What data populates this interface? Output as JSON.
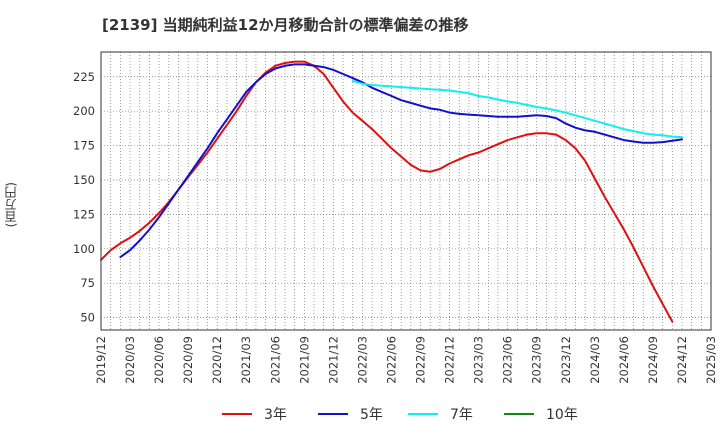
{
  "chart_data": {
    "type": "line",
    "title": "[2139]  当期純利益12か月移動合計の標準偏差の推移",
    "ylabel": "(百万円)",
    "xlabel": "",
    "x_ticks": [
      "2019/12",
      "2020/03",
      "2020/06",
      "2020/09",
      "2020/12",
      "2021/03",
      "2021/06",
      "2021/09",
      "2021/12",
      "2022/03",
      "2022/06",
      "2022/09",
      "2022/12",
      "2023/03",
      "2023/06",
      "2023/09",
      "2023/12",
      "2024/03",
      "2024/06",
      "2024/09",
      "2024/12",
      "2025/03"
    ],
    "y_ticks": [
      50,
      75,
      100,
      125,
      150,
      175,
      200,
      225
    ],
    "ylim": [
      41,
      243
    ],
    "xlim": [
      "2019/12",
      "2025/03"
    ],
    "grid": true,
    "legend_position": "bottom",
    "series": [
      {
        "name": "3年",
        "color": "#dd1111",
        "points": [
          [
            "2019/12",
            92
          ],
          [
            "2020/01",
            99
          ],
          [
            "2020/02",
            104
          ],
          [
            "2020/03",
            108
          ],
          [
            "2020/04",
            113
          ],
          [
            "2020/05",
            119
          ],
          [
            "2020/06",
            126
          ],
          [
            "2020/07",
            134
          ],
          [
            "2020/08",
            143
          ],
          [
            "2020/09",
            152
          ],
          [
            "2020/10",
            161
          ],
          [
            "2020/11",
            170
          ],
          [
            "2020/12",
            180
          ],
          [
            "2021/01",
            190
          ],
          [
            "2021/02",
            200
          ],
          [
            "2021/03",
            211
          ],
          [
            "2021/04",
            221
          ],
          [
            "2021/05",
            228
          ],
          [
            "2021/06",
            233
          ],
          [
            "2021/07",
            235
          ],
          [
            "2021/08",
            236
          ],
          [
            "2021/09",
            236
          ],
          [
            "2021/10",
            233
          ],
          [
            "2021/11",
            227
          ],
          [
            "2021/12",
            217
          ],
          [
            "2022/01",
            207
          ],
          [
            "2022/02",
            199
          ],
          [
            "2022/03",
            193
          ],
          [
            "2022/04",
            187
          ],
          [
            "2022/05",
            180
          ],
          [
            "2022/06",
            173
          ],
          [
            "2022/07",
            167
          ],
          [
            "2022/08",
            161
          ],
          [
            "2022/09",
            157
          ],
          [
            "2022/10",
            156
          ],
          [
            "2022/11",
            158
          ],
          [
            "2022/12",
            162
          ],
          [
            "2023/01",
            165
          ],
          [
            "2023/02",
            168
          ],
          [
            "2023/03",
            170
          ],
          [
            "2023/04",
            173
          ],
          [
            "2023/05",
            176
          ],
          [
            "2023/06",
            179
          ],
          [
            "2023/07",
            181
          ],
          [
            "2023/08",
            183
          ],
          [
            "2023/09",
            184
          ],
          [
            "2023/10",
            184
          ],
          [
            "2023/11",
            183
          ],
          [
            "2023/12",
            179
          ],
          [
            "2024/01",
            173
          ],
          [
            "2024/02",
            164
          ],
          [
            "2024/03",
            151
          ],
          [
            "2024/04",
            138
          ],
          [
            "2024/05",
            126
          ],
          [
            "2024/06",
            114
          ],
          [
            "2024/07",
            101
          ],
          [
            "2024/08",
            87
          ],
          [
            "2024/09",
            73
          ],
          [
            "2024/10",
            60
          ],
          [
            "2024/11",
            47
          ]
        ]
      },
      {
        "name": "5年",
        "color": "#1111cc",
        "points": [
          [
            "2020/02",
            94
          ],
          [
            "2020/03",
            99
          ],
          [
            "2020/04",
            106
          ],
          [
            "2020/05",
            114
          ],
          [
            "2020/06",
            123
          ],
          [
            "2020/07",
            133
          ],
          [
            "2020/08",
            143
          ],
          [
            "2020/09",
            153
          ],
          [
            "2020/10",
            163
          ],
          [
            "2020/11",
            173
          ],
          [
            "2020/12",
            184
          ],
          [
            "2021/01",
            194
          ],
          [
            "2021/02",
            204
          ],
          [
            "2021/03",
            214
          ],
          [
            "2021/04",
            221
          ],
          [
            "2021/05",
            227
          ],
          [
            "2021/06",
            231
          ],
          [
            "2021/07",
            233
          ],
          [
            "2021/08",
            234
          ],
          [
            "2021/09",
            234
          ],
          [
            "2021/10",
            233
          ],
          [
            "2021/11",
            232
          ],
          [
            "2021/12",
            230
          ],
          [
            "2022/01",
            227
          ],
          [
            "2022/02",
            224
          ],
          [
            "2022/03",
            221
          ],
          [
            "2022/04",
            217
          ],
          [
            "2022/05",
            214
          ],
          [
            "2022/06",
            211
          ],
          [
            "2022/07",
            208
          ],
          [
            "2022/08",
            206
          ],
          [
            "2022/09",
            204
          ],
          [
            "2022/10",
            202
          ],
          [
            "2022/11",
            201
          ],
          [
            "2022/12",
            199
          ],
          [
            "2023/01",
            198
          ],
          [
            "2023/02",
            197.5
          ],
          [
            "2023/03",
            197
          ],
          [
            "2023/04",
            196.5
          ],
          [
            "2023/05",
            196
          ],
          [
            "2023/06",
            196
          ],
          [
            "2023/07",
            196
          ],
          [
            "2023/08",
            196.5
          ],
          [
            "2023/09",
            197
          ],
          [
            "2023/10",
            196.5
          ],
          [
            "2023/11",
            195
          ],
          [
            "2023/12",
            191
          ],
          [
            "2024/01",
            188
          ],
          [
            "2024/02",
            186
          ],
          [
            "2024/03",
            185
          ],
          [
            "2024/04",
            183
          ],
          [
            "2024/05",
            181
          ],
          [
            "2024/06",
            179
          ],
          [
            "2024/07",
            178
          ],
          [
            "2024/08",
            177
          ],
          [
            "2024/09",
            177
          ],
          [
            "2024/10",
            177.5
          ],
          [
            "2024/11",
            178.5
          ],
          [
            "2024/12",
            179.5
          ]
        ]
      },
      {
        "name": "7年",
        "color": "#11eeee",
        "points": [
          [
            "2022/02",
            222
          ],
          [
            "2022/03",
            220
          ],
          [
            "2022/04",
            219
          ],
          [
            "2022/05",
            218.5
          ],
          [
            "2022/06",
            218
          ],
          [
            "2022/07",
            217.5
          ],
          [
            "2022/08",
            217
          ],
          [
            "2022/09",
            216.5
          ],
          [
            "2022/10",
            216
          ],
          [
            "2022/11",
            215.5
          ],
          [
            "2022/12",
            215
          ],
          [
            "2023/01",
            214
          ],
          [
            "2023/02",
            213
          ],
          [
            "2023/03",
            211
          ],
          [
            "2023/04",
            210
          ],
          [
            "2023/05",
            208.5
          ],
          [
            "2023/06",
            207
          ],
          [
            "2023/07",
            206
          ],
          [
            "2023/08",
            204.5
          ],
          [
            "2023/09",
            203
          ],
          [
            "2023/10",
            202
          ],
          [
            "2023/11",
            200.5
          ],
          [
            "2023/12",
            199
          ],
          [
            "2024/01",
            197
          ],
          [
            "2024/02",
            195
          ],
          [
            "2024/03",
            193
          ],
          [
            "2024/04",
            191
          ],
          [
            "2024/05",
            189
          ],
          [
            "2024/06",
            187
          ],
          [
            "2024/07",
            185.5
          ],
          [
            "2024/08",
            184
          ],
          [
            "2024/09",
            183
          ],
          [
            "2024/10",
            182.5
          ],
          [
            "2024/11",
            181.5
          ],
          [
            "2024/12",
            181
          ]
        ]
      },
      {
        "name": "10年",
        "color": "#118811",
        "points": []
      }
    ]
  }
}
